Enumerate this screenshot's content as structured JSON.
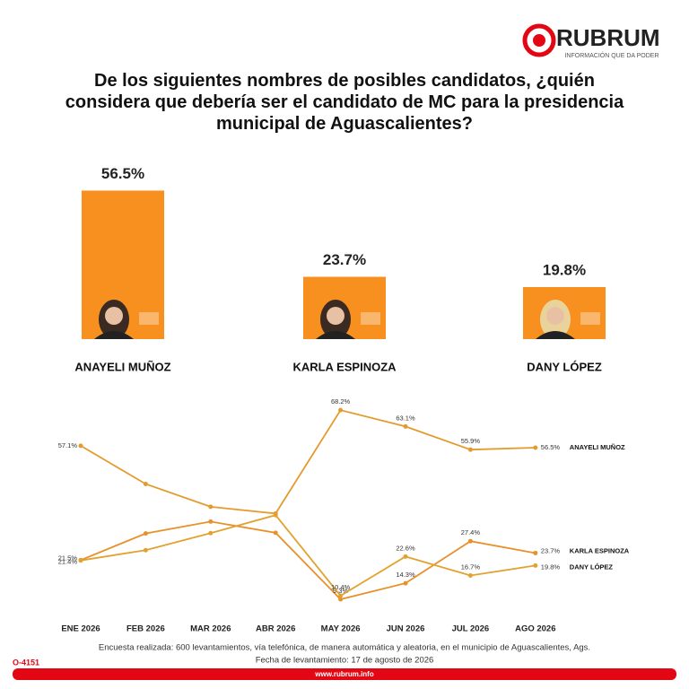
{
  "header": {
    "brand": "RUBRUM",
    "tagline": "INFORMACIÓN QUE DA PODER"
  },
  "chart_data": [
    {
      "type": "bar",
      "title": "De los siguientes nombres de posibles candidatos, ¿quién considera que debería ser el candidato de MC para la presidencia municipal de Aguascalientes?",
      "categories": [
        "ANAYELI MUÑOZ",
        "KARLA ESPINOZA",
        "DANY LÓPEZ"
      ],
      "values": [
        56.5,
        23.7,
        19.8
      ],
      "value_labels": [
        "56.5%",
        "23.7%",
        "19.8%"
      ],
      "color": "#f7901e"
    },
    {
      "type": "line",
      "categories": [
        "ENE 2026",
        "FEB 2026",
        "MAR 2026",
        "ABR 2026",
        "MAY 2026",
        "JUN 2026",
        "JUL 2026",
        "AGO 2026"
      ],
      "series": [
        {
          "name": "ANAYELI MUÑOZ",
          "color": "#e39b2d",
          "values": [
            57.1,
            45.2,
            38.1,
            36.0,
            68.2,
            63.1,
            55.9,
            56.5
          ],
          "value_labels": [
            "57.1%",
            null,
            null,
            null,
            "68.2%",
            "63.1%",
            "55.9%",
            "56.5%"
          ]
        },
        {
          "name": "KARLA ESPINOZA",
          "color": "#e8902a",
          "values": [
            21.5,
            29.8,
            33.5,
            30.0,
            9.3,
            14.3,
            27.4,
            23.7
          ],
          "value_labels": [
            "21.5%",
            null,
            null,
            null,
            "9.3%",
            "14.3%",
            "27.4%",
            "23.7%"
          ]
        },
        {
          "name": "DANY LÓPEZ",
          "color": "#e3a12f",
          "values": [
            21.4,
            24.6,
            29.9,
            35.5,
            10.4,
            22.6,
            16.7,
            19.8
          ],
          "value_labels": [
            "21.4%",
            null,
            null,
            null,
            "10.4%",
            "22.6%",
            "16.7%",
            "19.8%"
          ]
        }
      ]
    }
  ],
  "footer": {
    "note": "Encuesta realizada: 600 levantamientos, vía telefónica, de manera automática y aleatoria, en el municipio de Aguascalientes, Ags.",
    "date": "Fecha de levantamiento: 17 de agosto de 2026",
    "code": "O-4151",
    "url": "www.rubrum.info"
  }
}
